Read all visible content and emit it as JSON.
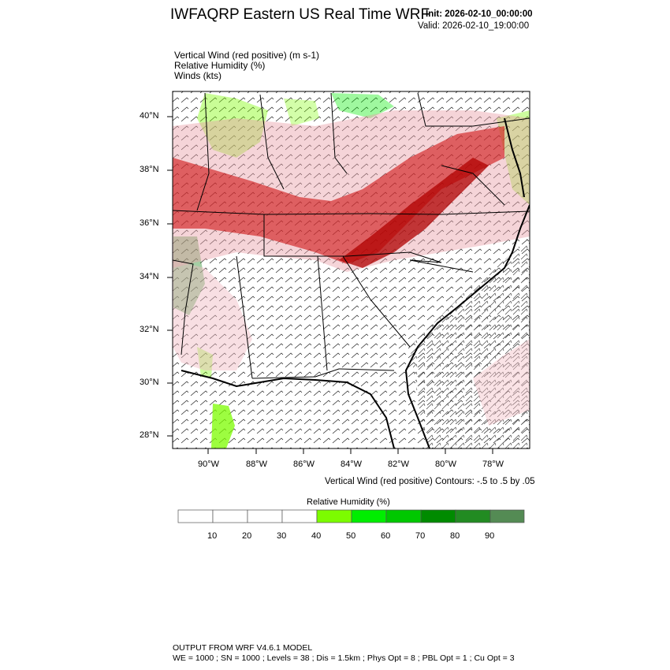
{
  "header": {
    "title": "IWFAQRP Eastern US Real Time WRF",
    "init": "Init: 2026-02-10_00:00:00",
    "valid": "Valid: 2026-02-10_19:00:00"
  },
  "variables": [
    "Vertical Wind (red positive)   (m s-1)",
    "Relative Humidity   (%)",
    "Winds   (kts)"
  ],
  "axes": {
    "lat_ticks": [
      "40°N",
      "38°N",
      "36°N",
      "34°N",
      "32°N",
      "30°N",
      "28°N"
    ],
    "lon_ticks": [
      "90°W",
      "88°W",
      "86°W",
      "84°W",
      "82°W",
      "80°W",
      "78°W"
    ]
  },
  "contour_note": "Vertical Wind (red positive) Contours: -.5 to .5 by .05",
  "colorbar": {
    "title": "Relative Humidity  (%)",
    "labels": [
      "10",
      "20",
      "30",
      "40",
      "50",
      "60",
      "70",
      "80",
      "90"
    ],
    "colors": [
      "#ffffff",
      "#ffffff",
      "#ffffff",
      "#ffffff",
      "#7cfc00",
      "#00ee00",
      "#00c800",
      "#008b00",
      "#228b22",
      "#548b54"
    ]
  },
  "footer": {
    "line1": "OUTPUT FROM WRF V4.6.1 MODEL",
    "line2": "WE = 1000 ; SN = 1000 ; Levels = 38 ; Dis = 1.5km ; Phys Opt = 8 ; PBL Opt = 1 ; Cu Opt = 3"
  },
  "colors": {
    "updraft": "#cc0000",
    "rh_accent": "#7cfc00"
  },
  "icons": [
    "wind-barb-icon"
  ]
}
